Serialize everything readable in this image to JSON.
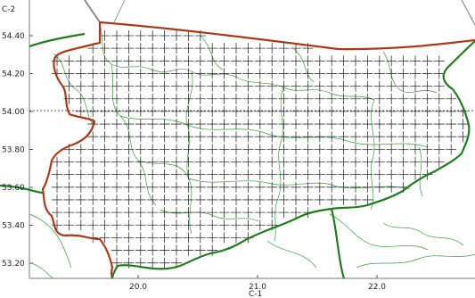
{
  "map": {
    "corner_label_top": "C-2",
    "corner_label_bottom": "C-1",
    "lat_ticks": [
      "54.40",
      "54.20",
      "54.00",
      "53.80",
      "53.60",
      "53.40",
      "53.20"
    ],
    "lon_ticks": [
      "20.0",
      "21.0",
      "22.0"
    ],
    "lat_values": [
      54.4,
      54.2,
      54.0,
      53.8,
      53.6,
      53.4,
      53.2
    ],
    "lon_values": [
      20.0,
      21.0,
      22.0
    ],
    "colors": {
      "grid_cross": "#333333",
      "region_boundary": "#a83a1a",
      "country_border": "#1e7d1e",
      "admin_lines": "#3c9a3c",
      "coastline": "#7a8a7a",
      "reference_line": "#555555",
      "frame": "#7a7a7a"
    }
  }
}
